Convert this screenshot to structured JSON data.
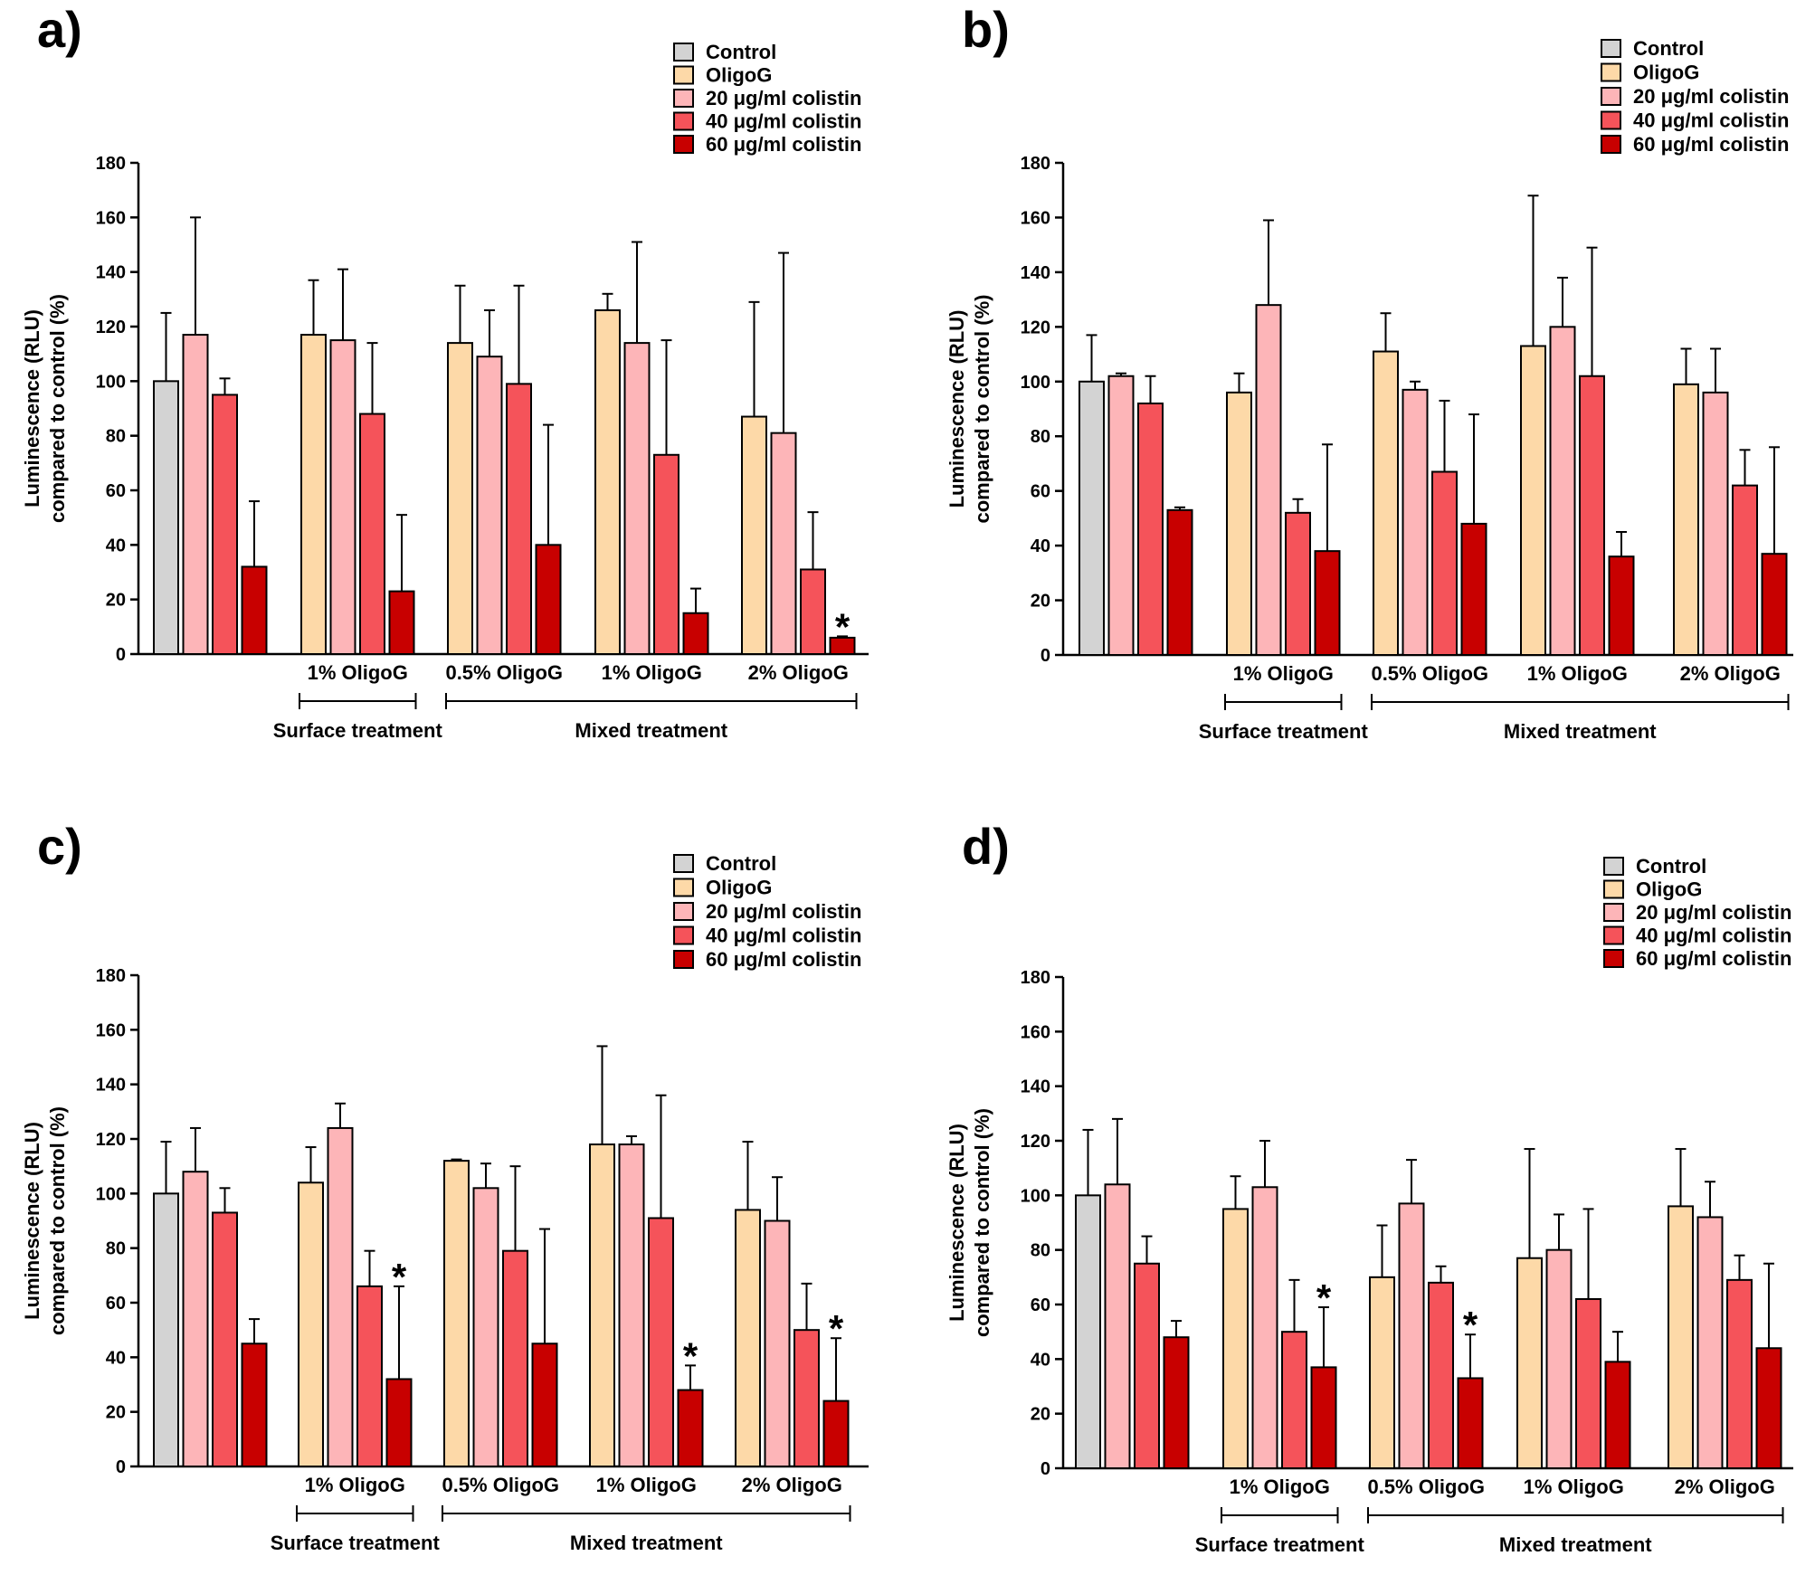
{
  "legend": [
    "Control",
    "OligoG",
    "20 μg/ml colistin",
    "40 μg/ml colistin",
    "60 μg/ml colistin"
  ],
  "colors": {
    "Control": "#d3d3d3",
    "OligoG": "#fdd9a8",
    "20 μg/ml colistin": "#fdb5b8",
    "40 μg/ml colistin": "#f5535a",
    "60 μg/ml colistin": "#c80000"
  },
  "chart_data": [
    {
      "type": "bar",
      "panel_label": "a)",
      "ylabel": "Luminescence (RLU) compared to control (%)",
      "ylabel_lines": [
        "Luminescence (RLU)",
        "compared to control (%)"
      ],
      "ylim": [
        0,
        180
      ],
      "yticks": [
        "0",
        "20",
        "40",
        "60",
        "80",
        "100",
        "120",
        "140",
        "160",
        "180"
      ],
      "group_labels": [
        "",
        "1% OligoG",
        "0.5% OligoG",
        "1% OligoG",
        "2% OligoG"
      ],
      "bracket_labels": [
        "Surface treatment",
        "Mixed treatment"
      ],
      "groups": [
        {
          "bars": [
            {
              "series": "Control",
              "value": 100,
              "error": 25
            },
            {
              "series": "20 μg/ml colistin",
              "value": 117,
              "error": 43
            },
            {
              "series": "40 μg/ml colistin",
              "value": 95,
              "error": 6
            },
            {
              "series": "60 μg/ml colistin",
              "value": 32,
              "error": 24
            }
          ]
        },
        {
          "bars": [
            {
              "series": "OligoG",
              "value": 117,
              "error": 20
            },
            {
              "series": "20 μg/ml colistin",
              "value": 115,
              "error": 26
            },
            {
              "series": "40 μg/ml colistin",
              "value": 88,
              "error": 26
            },
            {
              "series": "60 μg/ml colistin",
              "value": 23,
              "error": 28
            }
          ]
        },
        {
          "bars": [
            {
              "series": "OligoG",
              "value": 114,
              "error": 21
            },
            {
              "series": "20 μg/ml colistin",
              "value": 109,
              "error": 17
            },
            {
              "series": "40 μg/ml colistin",
              "value": 99,
              "error": 36
            },
            {
              "series": "60 μg/ml colistin",
              "value": 40,
              "error": 44
            }
          ]
        },
        {
          "bars": [
            {
              "series": "OligoG",
              "value": 126,
              "error": 6
            },
            {
              "series": "20 μg/ml colistin",
              "value": 114,
              "error": 37
            },
            {
              "series": "40 μg/ml colistin",
              "value": 73,
              "error": 42
            },
            {
              "series": "60 μg/ml colistin",
              "value": 15,
              "error": 9
            }
          ]
        },
        {
          "bars": [
            {
              "series": "OligoG",
              "value": 87,
              "error": 42
            },
            {
              "series": "20 μg/ml colistin",
              "value": 81,
              "error": 66
            },
            {
              "series": "40 μg/ml colistin",
              "value": 31,
              "error": 21
            },
            {
              "series": "60 μg/ml colistin",
              "value": 6,
              "error": 0.5,
              "significant": true
            }
          ]
        }
      ]
    },
    {
      "type": "bar",
      "panel_label": "b)",
      "ylabel": "Luminescence (RLU) compared to control (%)",
      "ylabel_lines": [
        "Luminescence (RLU)",
        "compared to control (%)"
      ],
      "ylim": [
        0,
        180
      ],
      "yticks": [
        "0",
        "20",
        "40",
        "60",
        "80",
        "100",
        "120",
        "140",
        "160",
        "180"
      ],
      "group_labels": [
        "",
        "1% OligoG",
        "0.5% OligoG",
        "1% OligoG",
        "2% OligoG"
      ],
      "bracket_labels": [
        "Surface treatment",
        "Mixed treatment"
      ],
      "groups": [
        {
          "bars": [
            {
              "series": "Control",
              "value": 100,
              "error": 17
            },
            {
              "series": "20 μg/ml colistin",
              "value": 102,
              "error": 1
            },
            {
              "series": "40 μg/ml colistin",
              "value": 92,
              "error": 10
            },
            {
              "series": "60 μg/ml colistin",
              "value": 53,
              "error": 1
            }
          ]
        },
        {
          "bars": [
            {
              "series": "OligoG",
              "value": 96,
              "error": 7
            },
            {
              "series": "20 μg/ml colistin",
              "value": 128,
              "error": 31
            },
            {
              "series": "40 μg/ml colistin",
              "value": 52,
              "error": 5
            },
            {
              "series": "60 μg/ml colistin",
              "value": 38,
              "error": 39
            }
          ]
        },
        {
          "bars": [
            {
              "series": "OligoG",
              "value": 111,
              "error": 14
            },
            {
              "series": "20 μg/ml colistin",
              "value": 97,
              "error": 3
            },
            {
              "series": "40 μg/ml colistin",
              "value": 67,
              "error": 26
            },
            {
              "series": "60 μg/ml colistin",
              "value": 48,
              "error": 40
            }
          ]
        },
        {
          "bars": [
            {
              "series": "OligoG",
              "value": 113,
              "error": 55
            },
            {
              "series": "20 μg/ml colistin",
              "value": 120,
              "error": 18
            },
            {
              "series": "40 μg/ml colistin",
              "value": 102,
              "error": 47
            },
            {
              "series": "60 μg/ml colistin",
              "value": 36,
              "error": 9
            }
          ]
        },
        {
          "bars": [
            {
              "series": "OligoG",
              "value": 99,
              "error": 13
            },
            {
              "series": "20 μg/ml colistin",
              "value": 96,
              "error": 16
            },
            {
              "series": "40 μg/ml colistin",
              "value": 62,
              "error": 13
            },
            {
              "series": "60 μg/ml colistin",
              "value": 37,
              "error": 39
            }
          ]
        }
      ]
    },
    {
      "type": "bar",
      "panel_label": "c)",
      "ylabel": "Luminescence (RLU) compared to control (%)",
      "ylabel_lines": [
        "Luminescence (RLU)",
        "compared to control (%)"
      ],
      "ylim": [
        0,
        180
      ],
      "yticks": [
        "0",
        "20",
        "40",
        "60",
        "80",
        "100",
        "120",
        "140",
        "160",
        "180"
      ],
      "group_labels": [
        "",
        "1% OligoG",
        "0.5% OligoG",
        "1% OligoG",
        "2% OligoG"
      ],
      "bracket_labels": [
        "Surface treatment",
        "Mixed treatment"
      ],
      "groups": [
        {
          "bars": [
            {
              "series": "Control",
              "value": 100,
              "error": 19
            },
            {
              "series": "20 μg/ml colistin",
              "value": 108,
              "error": 16
            },
            {
              "series": "40 μg/ml colistin",
              "value": 93,
              "error": 9
            },
            {
              "series": "60 μg/ml colistin",
              "value": 45,
              "error": 9
            }
          ]
        },
        {
          "bars": [
            {
              "series": "OligoG",
              "value": 104,
              "error": 13
            },
            {
              "series": "20 μg/ml colistin",
              "value": 124,
              "error": 9
            },
            {
              "series": "40 μg/ml colistin",
              "value": 66,
              "error": 13
            },
            {
              "series": "60 μg/ml colistin",
              "value": 32,
              "error": 34,
              "significant": true
            }
          ]
        },
        {
          "bars": [
            {
              "series": "OligoG",
              "value": 112,
              "error": 0.5
            },
            {
              "series": "20 μg/ml colistin",
              "value": 102,
              "error": 9
            },
            {
              "series": "40 μg/ml colistin",
              "value": 79,
              "error": 31
            },
            {
              "series": "60 μg/ml colistin",
              "value": 45,
              "error": 42
            }
          ]
        },
        {
          "bars": [
            {
              "series": "OligoG",
              "value": 118,
              "error": 36
            },
            {
              "series": "20 μg/ml colistin",
              "value": 118,
              "error": 3
            },
            {
              "series": "40 μg/ml colistin",
              "value": 91,
              "error": 45
            },
            {
              "series": "60 μg/ml colistin",
              "value": 28,
              "error": 9,
              "significant": true
            }
          ]
        },
        {
          "bars": [
            {
              "series": "OligoG",
              "value": 94,
              "error": 25
            },
            {
              "series": "20 μg/ml colistin",
              "value": 90,
              "error": 16
            },
            {
              "series": "40 μg/ml colistin",
              "value": 50,
              "error": 17
            },
            {
              "series": "60 μg/ml colistin",
              "value": 24,
              "error": 23,
              "significant": true
            }
          ]
        }
      ]
    },
    {
      "type": "bar",
      "panel_label": "d)",
      "ylabel": "Luminescence (RLU) compared to control (%)",
      "ylabel_lines": [
        "Luminescence (RLU)",
        "compared to control (%)"
      ],
      "ylim": [
        0,
        180
      ],
      "yticks": [
        "0",
        "20",
        "40",
        "60",
        "80",
        "100",
        "120",
        "140",
        "160",
        "180"
      ],
      "group_labels": [
        "",
        "1% OligoG",
        "0.5% OligoG",
        "1% OligoG",
        "2% OligoG"
      ],
      "bracket_labels": [
        "Surface treatment",
        "Mixed treatment"
      ],
      "groups": [
        {
          "bars": [
            {
              "series": "Control",
              "value": 100,
              "error": 24
            },
            {
              "series": "20 μg/ml colistin",
              "value": 104,
              "error": 24
            },
            {
              "series": "40 μg/ml colistin",
              "value": 75,
              "error": 10
            },
            {
              "series": "60 μg/ml colistin",
              "value": 48,
              "error": 6
            }
          ]
        },
        {
          "bars": [
            {
              "series": "OligoG",
              "value": 95,
              "error": 12
            },
            {
              "series": "20 μg/ml colistin",
              "value": 103,
              "error": 17
            },
            {
              "series": "40 μg/ml colistin",
              "value": 50,
              "error": 19
            },
            {
              "series": "60 μg/ml colistin",
              "value": 37,
              "error": 22,
              "significant": true
            }
          ]
        },
        {
          "bars": [
            {
              "series": "OligoG",
              "value": 70,
              "error": 19
            },
            {
              "series": "20 μg/ml colistin",
              "value": 97,
              "error": 16
            },
            {
              "series": "40 μg/ml colistin",
              "value": 68,
              "error": 6
            },
            {
              "series": "60 μg/ml colistin",
              "value": 33,
              "error": 16,
              "significant": true
            }
          ]
        },
        {
          "bars": [
            {
              "series": "OligoG",
              "value": 77,
              "error": 40
            },
            {
              "series": "20 μg/ml colistin",
              "value": 80,
              "error": 13
            },
            {
              "series": "40 μg/ml colistin",
              "value": 62,
              "error": 33
            },
            {
              "series": "60 μg/ml colistin",
              "value": 39,
              "error": 11
            }
          ]
        },
        {
          "bars": [
            {
              "series": "OligoG",
              "value": 96,
              "error": 21
            },
            {
              "series": "20 μg/ml colistin",
              "value": 92,
              "error": 13
            },
            {
              "series": "40 μg/ml colistin",
              "value": 69,
              "error": 9
            },
            {
              "series": "60 μg/ml colistin",
              "value": 44,
              "error": 31
            }
          ]
        }
      ]
    }
  ]
}
